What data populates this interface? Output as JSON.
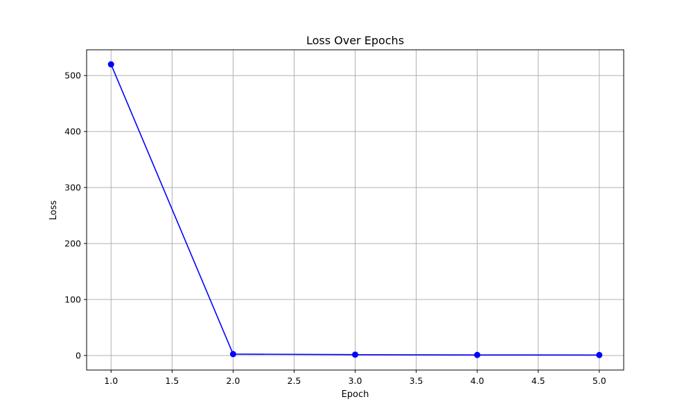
{
  "chart_data": {
    "type": "line",
    "title": "Loss Over Epochs",
    "xlabel": "Epoch",
    "ylabel": "Loss",
    "xlim": [
      0.8,
      5.2
    ],
    "ylim": [
      -26,
      546
    ],
    "xticks": [
      1.0,
      1.5,
      2.0,
      2.5,
      3.0,
      3.5,
      4.0,
      4.5,
      5.0
    ],
    "xtick_labels": [
      "1.0",
      "1.5",
      "2.0",
      "2.5",
      "3.0",
      "3.5",
      "4.0",
      "4.5",
      "5.0"
    ],
    "yticks": [
      0,
      100,
      200,
      300,
      400,
      500
    ],
    "ytick_labels": [
      "0",
      "100",
      "200",
      "300",
      "400",
      "500"
    ],
    "grid": true,
    "series": [
      {
        "x": [
          1,
          2,
          3,
          4,
          5
        ],
        "y": [
          520,
          2.5,
          1.5,
          1.0,
          0.8
        ],
        "color": "#0000ff",
        "marker": "circle"
      }
    ]
  }
}
